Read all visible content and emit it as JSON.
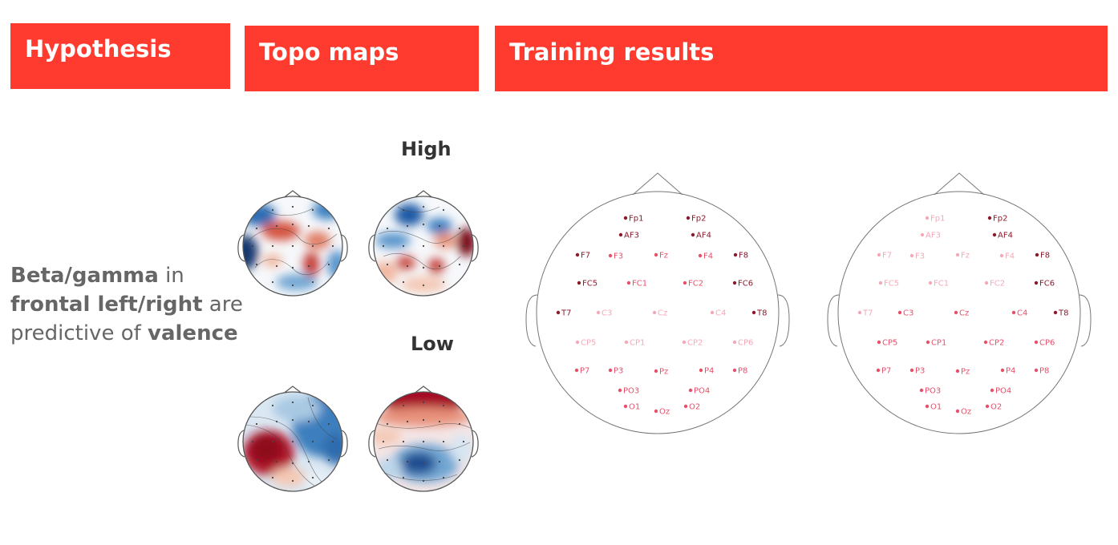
{
  "headers": {
    "hypothesis": "Hypothesis",
    "topo_maps": "Topo maps",
    "training_results": "Training results"
  },
  "hypothesis": {
    "part1_bold": "Beta/gamma",
    "part2": " in ",
    "part3_bold": "frontal left/right",
    "part4": " are predictive of ",
    "part5_bold": "valence"
  },
  "topo": {
    "high_label": "High",
    "low_label": "Low"
  },
  "colors": {
    "header_bg": "#ff3a2f",
    "header_text": "#ffffff",
    "dark_red": "#8b1a2b",
    "mid_pink": "#e8506a",
    "light_pink": "#f5a9b8",
    "topo_red": "#b2182b",
    "topo_blue": "#2166ac"
  },
  "electrodes": [
    {
      "label": "Fp1",
      "left": "dark",
      "right": "light"
    },
    {
      "label": "Fp2",
      "left": "dark",
      "right": "dark"
    },
    {
      "label": "AF3",
      "left": "dark",
      "right": "light"
    },
    {
      "label": "AF4",
      "left": "dark",
      "right": "dark"
    },
    {
      "label": "F7",
      "left": "dark",
      "right": "light"
    },
    {
      "label": "F3",
      "left": "mid",
      "right": "light"
    },
    {
      "label": "Fz",
      "left": "mid",
      "right": "light"
    },
    {
      "label": "F4",
      "left": "mid",
      "right": "light"
    },
    {
      "label": "F8",
      "left": "dark",
      "right": "dark"
    },
    {
      "label": "FC5",
      "left": "dark",
      "right": "light"
    },
    {
      "label": "FC1",
      "left": "mid",
      "right": "light"
    },
    {
      "label": "FC2",
      "left": "mid",
      "right": "light"
    },
    {
      "label": "FC6",
      "left": "dark",
      "right": "dark"
    },
    {
      "label": "T7",
      "left": "dark",
      "right": "light"
    },
    {
      "label": "C3",
      "left": "light",
      "right": "mid"
    },
    {
      "label": "Cz",
      "left": "light",
      "right": "mid"
    },
    {
      "label": "C4",
      "left": "light",
      "right": "mid"
    },
    {
      "label": "T8",
      "left": "dark",
      "right": "dark"
    },
    {
      "label": "CP5",
      "left": "light",
      "right": "mid"
    },
    {
      "label": "CP1",
      "left": "light",
      "right": "mid"
    },
    {
      "label": "CP2",
      "left": "light",
      "right": "mid"
    },
    {
      "label": "CP6",
      "left": "light",
      "right": "mid"
    },
    {
      "label": "P7",
      "left": "mid",
      "right": "mid"
    },
    {
      "label": "P3",
      "left": "mid",
      "right": "mid"
    },
    {
      "label": "Pz",
      "left": "mid",
      "right": "mid"
    },
    {
      "label": "P4",
      "left": "mid",
      "right": "mid"
    },
    {
      "label": "P8",
      "left": "mid",
      "right": "mid"
    },
    {
      "label": "PO3",
      "left": "mid",
      "right": "mid"
    },
    {
      "label": "PO4",
      "left": "mid",
      "right": "mid"
    },
    {
      "label": "O1",
      "left": "mid",
      "right": "mid"
    },
    {
      "label": "Oz",
      "left": "mid",
      "right": "mid"
    },
    {
      "label": "O2",
      "left": "mid",
      "right": "mid"
    }
  ]
}
